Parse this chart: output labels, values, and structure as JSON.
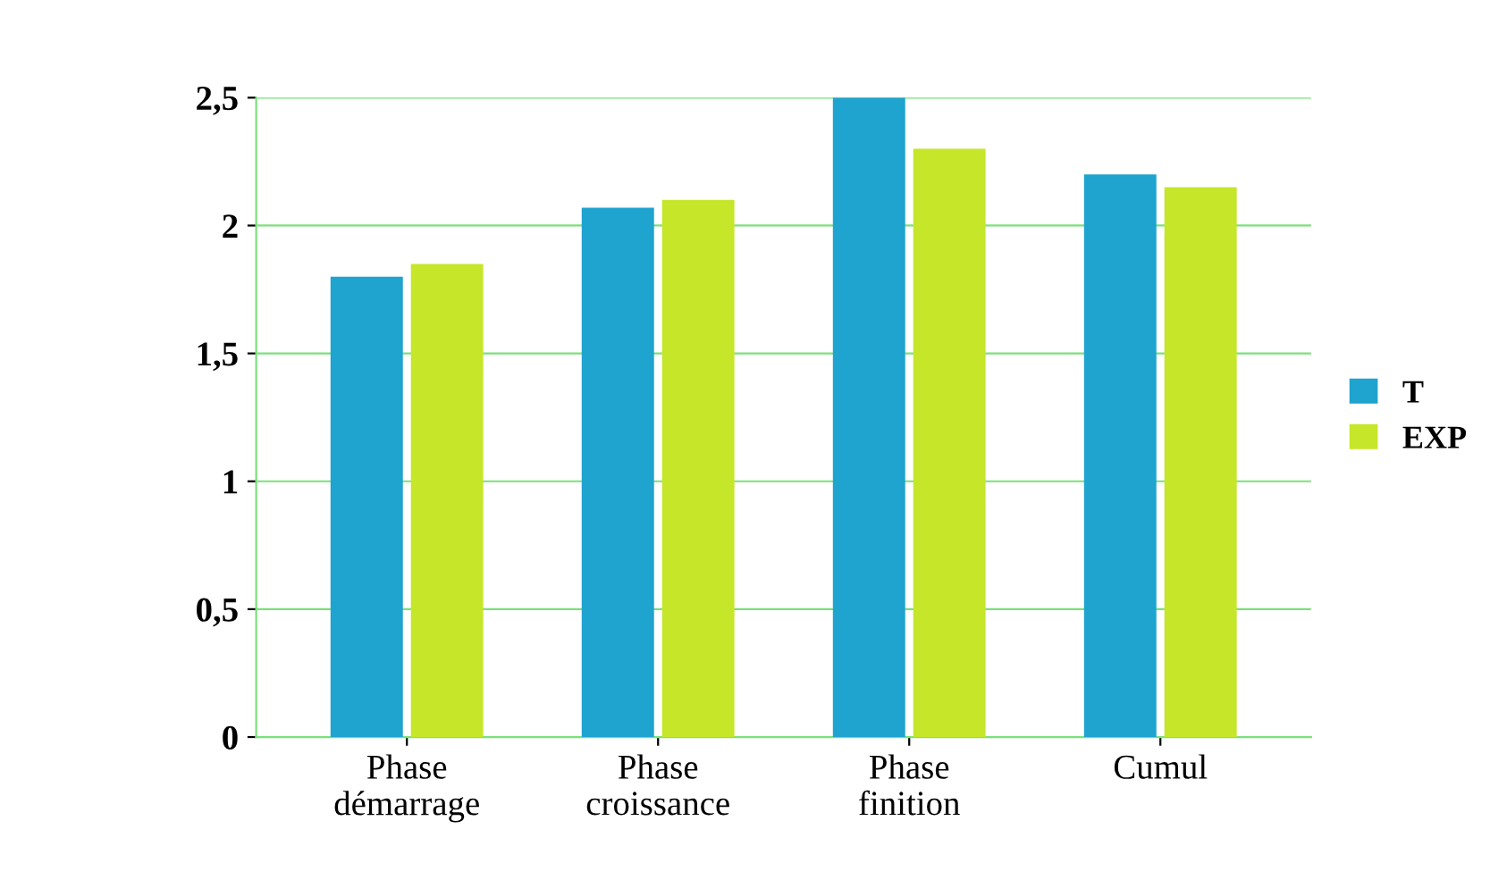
{
  "chart_data": {
    "type": "bar",
    "categories": [
      "Phase\ndémarrage",
      "Phase\ncroissance",
      "Phase\nfinition",
      "Cumul"
    ],
    "series": [
      {
        "name": "T",
        "color": "#1fa3cf",
        "values": [
          1.8,
          2.07,
          2.5,
          2.2
        ]
      },
      {
        "name": "EXP",
        "color": "#c6e62a",
        "values": [
          1.85,
          2.1,
          2.3,
          2.15
        ]
      }
    ],
    "ylim": [
      0,
      2.5
    ],
    "yticks": [
      0,
      {
        "value": 0.5,
        "label": "0,5"
      },
      1,
      {
        "value": 1.5,
        "label": "1,5"
      },
      2,
      {
        "value": 2.5,
        "label": "2,5"
      }
    ],
    "grid": "y",
    "legend": "right"
  }
}
